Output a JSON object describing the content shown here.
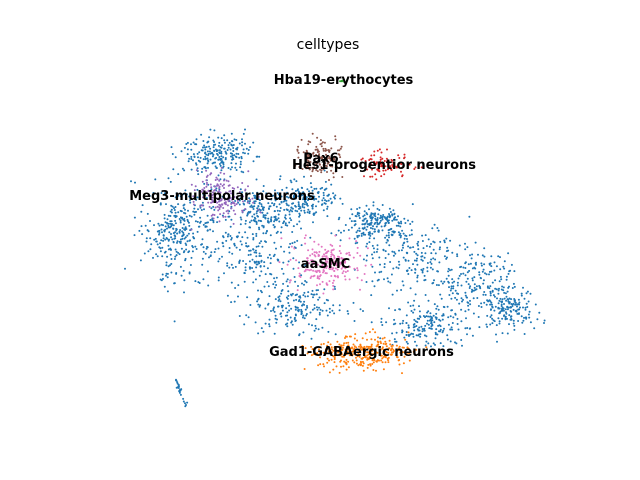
{
  "chart_data": {
    "type": "scatter",
    "title": "celltypes",
    "xlabel": "",
    "ylabel": "",
    "grid": false,
    "legend": "on data",
    "axes_visible": false,
    "xlim": [
      0,
      100
    ],
    "ylim": [
      0,
      100
    ],
    "clusters": [
      {
        "name": "Meg3-multipolar neurons",
        "color": "#9467bd",
        "center": [
          26,
          63
        ],
        "spread": [
          5,
          6
        ],
        "n": 170
      },
      {
        "name": "Pax6",
        "color": "#8c564b",
        "center": [
          48,
          74
        ],
        "spread": [
          4,
          4
        ],
        "n": 150
      },
      {
        "name": "Hes1-progentior neurons",
        "color": "#d62728",
        "center": [
          62,
          72
        ],
        "spread": [
          5,
          3
        ],
        "n": 90
      },
      {
        "name": "Hba19-erythocytes",
        "color": "#2ca02c",
        "center": [
          53,
          97
        ],
        "spread": [
          1.2,
          0.4
        ],
        "n": 8
      },
      {
        "name": "aaSMC",
        "color": "#e377c2",
        "center": [
          49,
          43
        ],
        "spread": [
          6,
          5
        ],
        "n": 220
      },
      {
        "name": "Gad1-GABAergic neurons",
        "color": "#ff7f0e",
        "center": [
          57,
          17
        ],
        "spread": [
          9,
          4
        ],
        "n": 320
      }
    ],
    "background_cluster": {
      "color": "#1f77b4",
      "n": 2200
    }
  }
}
